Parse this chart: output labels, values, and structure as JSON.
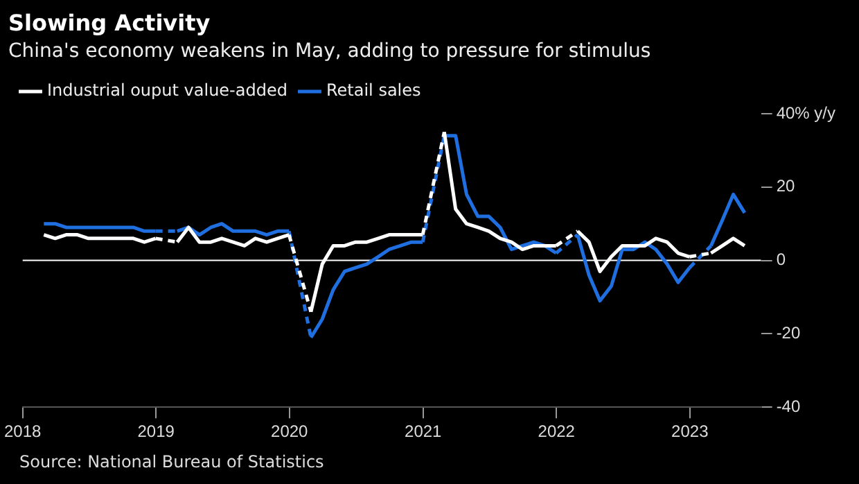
{
  "chart_data": {
    "type": "line",
    "title": "Slowing Activity",
    "subtitle": "China's economy weakens in May, adding to pressure for stimulus",
    "x": [
      "2018-02-28",
      "2018-03-31",
      "2018-04-30",
      "2018-05-31",
      "2018-06-30",
      "2018-07-31",
      "2018-08-31",
      "2018-09-30",
      "2018-10-31",
      "2018-11-30",
      "2018-12-31",
      "2019-01-31",
      "2019-02-28",
      "2019-03-31",
      "2019-04-30",
      "2019-05-31",
      "2019-06-30",
      "2019-07-31",
      "2019-08-31",
      "2019-09-30",
      "2019-10-31",
      "2019-11-30",
      "2019-12-31",
      "2020-01-31",
      "2020-02-29",
      "2020-03-31",
      "2020-04-30",
      "2020-05-31",
      "2020-06-30",
      "2020-07-31",
      "2020-08-31",
      "2020-09-30",
      "2020-10-31",
      "2020-11-30",
      "2020-12-31",
      "2021-01-31",
      "2021-02-28",
      "2021-03-31",
      "2021-04-30",
      "2021-05-31",
      "2021-06-30",
      "2021-07-31",
      "2021-08-31",
      "2021-09-30",
      "2021-10-31",
      "2021-11-30",
      "2021-12-31",
      "2022-01-31",
      "2022-02-28",
      "2022-03-31",
      "2022-04-30",
      "2022-05-31",
      "2022-06-30",
      "2022-07-31",
      "2022-08-31",
      "2022-09-30",
      "2022-10-31",
      "2022-11-30",
      "2022-12-31",
      "2023-01-31",
      "2023-02-28",
      "2023-03-31",
      "2023-04-30",
      "2023-05-31"
    ],
    "series": [
      {
        "name": "Industrial ouput value-added",
        "color": "#ffffff",
        "values": [
          7,
          6,
          7,
          7,
          6,
          6,
          6,
          6,
          6,
          5,
          6,
          null,
          5,
          9,
          5,
          5,
          6,
          5,
          4,
          6,
          5,
          6,
          7,
          null,
          -14,
          -1,
          4,
          4,
          5,
          5,
          6,
          7,
          7,
          7,
          7,
          null,
          35,
          14,
          10,
          9,
          8,
          6,
          5,
          3,
          4,
          4,
          4,
          null,
          8,
          5,
          -3,
          1,
          4,
          4,
          4,
          6,
          5,
          2,
          1,
          null,
          2,
          4,
          6,
          4
        ]
      },
      {
        "name": "Retail sales",
        "color": "#1f6fe0",
        "values": [
          10,
          10,
          9,
          9,
          9,
          9,
          9,
          9,
          9,
          8,
          8,
          null,
          8,
          9,
          7,
          9,
          10,
          8,
          8,
          8,
          7,
          8,
          8,
          null,
          -21,
          -16,
          -8,
          -3,
          -2,
          -1,
          1,
          3,
          4,
          5,
          5,
          null,
          34,
          34,
          18,
          12,
          12,
          9,
          3,
          4,
          5,
          4,
          2,
          null,
          7,
          -4,
          -11,
          -7,
          3,
          3,
          5,
          3,
          -1,
          -6,
          -2,
          null,
          4,
          11,
          18,
          13
        ]
      }
    ],
    "xlim": [
      "2018-01-01",
      "2023-07-15"
    ],
    "xticks": [
      {
        "value": "2018-01-01",
        "label": "2018"
      },
      {
        "value": "2019-01-01",
        "label": "2019"
      },
      {
        "value": "2020-01-01",
        "label": "2020"
      },
      {
        "value": "2021-01-01",
        "label": "2021"
      },
      {
        "value": "2022-01-01",
        "label": "2022"
      },
      {
        "value": "2023-01-01",
        "label": "2023"
      }
    ],
    "ylim": [
      -40,
      40
    ],
    "yticks": [
      -40,
      -20,
      0,
      20,
      {
        "value": 40,
        "label": "40% y/y"
      }
    ],
    "ref_lines": [
      {
        "axis": "y",
        "value": 0,
        "color": "#ffffff"
      }
    ],
    "annotations": [
      "Source: National Bureau of Statistics"
    ],
    "legend": "top left",
    "grid": false,
    "marker": "none",
    "line_style": "solid"
  }
}
